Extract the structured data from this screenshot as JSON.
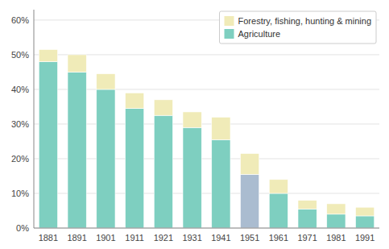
{
  "chart_data": {
    "type": "bar",
    "stacked": true,
    "categories": [
      "1881",
      "1891",
      "1901",
      "1911",
      "1921",
      "1931",
      "1941",
      "1951",
      "1961",
      "1971",
      "1981",
      "1991"
    ],
    "series": [
      {
        "name": "Agriculture",
        "color": "#7ecfc0",
        "colors": [
          "#7ecfc0",
          "#7ecfc0",
          "#7ecfc0",
          "#7ecfc0",
          "#7ecfc0",
          "#7ecfc0",
          "#7ecfc0",
          "#aabcd0",
          "#7ecfc0",
          "#7ecfc0",
          "#7ecfc0",
          "#7ecfc0"
        ],
        "values": [
          48,
          45,
          40,
          34.5,
          32.5,
          29,
          25.5,
          15.5,
          10,
          5.5,
          4,
          3.5
        ]
      },
      {
        "name": "Forestry, fishing, hunting & mining",
        "color": "#f0ebb8",
        "values": [
          3.5,
          5,
          4.5,
          4.5,
          4.5,
          4.5,
          6.5,
          6,
          4,
          2.5,
          3,
          2.5
        ]
      }
    ],
    "ylim": [
      0,
      63
    ],
    "yticks": [
      {
        "value": 0,
        "label": "0%"
      },
      {
        "value": 10,
        "label": "10%"
      },
      {
        "value": 20,
        "label": "20%"
      },
      {
        "value": 30,
        "label": "30%"
      },
      {
        "value": 40,
        "label": "40%"
      },
      {
        "value": 50,
        "label": "50%"
      },
      {
        "value": 60,
        "label": "60%"
      }
    ],
    "grid": true,
    "legend": "upper right"
  }
}
